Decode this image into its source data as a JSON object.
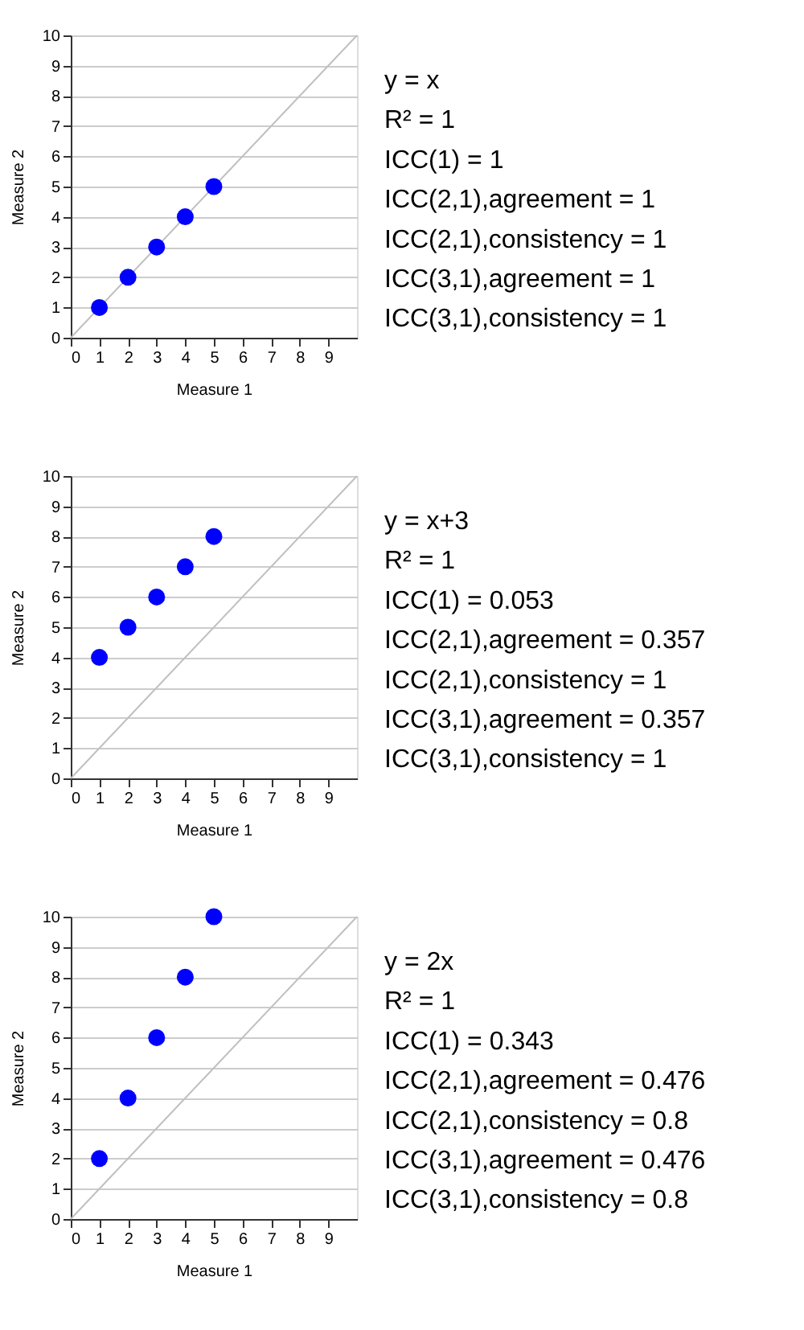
{
  "chart_data": [
    {
      "type": "scatter",
      "xlabel": "Measure 1",
      "ylabel": "Measure 2",
      "xlim": [
        0,
        10
      ],
      "xticks": [
        0,
        1,
        2,
        3,
        4,
        5,
        6,
        7,
        8,
        9
      ],
      "ylim": [
        0,
        10
      ],
      "yticks": [
        0,
        1,
        2,
        3,
        4,
        5,
        6,
        7,
        8,
        9,
        10
      ],
      "grid": "y",
      "marker": "circle",
      "series": [
        {
          "type": "line",
          "color": "#c0c0c0",
          "x": [
            0,
            10
          ],
          "values": [
            0,
            10
          ],
          "line_style": "solid",
          "marker": "none"
        },
        {
          "color": "#0000ff",
          "x": [
            1,
            2,
            3,
            4,
            5
          ],
          "values": [
            1,
            2,
            3,
            4,
            5
          ]
        }
      ],
      "annotations": [
        "y = x",
        "R² = 1",
        "ICC(1) = 1",
        "ICC(2,1),agreement = 1",
        "ICC(2,1),consistency = 1",
        "ICC(3,1),agreement = 1",
        "ICC(3,1),consistency = 1"
      ]
    },
    {
      "type": "scatter",
      "xlabel": "Measure 1",
      "ylabel": "Measure 2",
      "xlim": [
        0,
        10
      ],
      "xticks": [
        0,
        1,
        2,
        3,
        4,
        5,
        6,
        7,
        8,
        9
      ],
      "ylim": [
        0,
        10
      ],
      "yticks": [
        0,
        1,
        2,
        3,
        4,
        5,
        6,
        7,
        8,
        9,
        10
      ],
      "grid": "y",
      "marker": "circle",
      "series": [
        {
          "type": "line",
          "color": "#c0c0c0",
          "x": [
            0,
            10
          ],
          "values": [
            0,
            10
          ],
          "line_style": "solid",
          "marker": "none"
        },
        {
          "color": "#0000ff",
          "x": [
            1,
            2,
            3,
            4,
            5
          ],
          "values": [
            4,
            5,
            6,
            7,
            8
          ]
        }
      ],
      "annotations": [
        "y = x+3",
        "R² = 1",
        "ICC(1) = 0.053",
        "ICC(2,1),agreement = 0.357",
        "ICC(2,1),consistency = 1",
        "ICC(3,1),agreement = 0.357",
        "ICC(3,1),consistency = 1"
      ]
    },
    {
      "type": "scatter",
      "xlabel": "Measure 1",
      "ylabel": "Measure 2",
      "xlim": [
        0,
        10
      ],
      "xticks": [
        0,
        1,
        2,
        3,
        4,
        5,
        6,
        7,
        8,
        9
      ],
      "ylim": [
        0,
        10
      ],
      "yticks": [
        0,
        1,
        2,
        3,
        4,
        5,
        6,
        7,
        8,
        9,
        10
      ],
      "grid": "y",
      "marker": "circle",
      "series": [
        {
          "type": "line",
          "color": "#c0c0c0",
          "x": [
            0,
            10
          ],
          "values": [
            0,
            10
          ],
          "line_style": "solid",
          "marker": "none"
        },
        {
          "color": "#0000ff",
          "x": [
            1,
            2,
            3,
            4,
            5
          ],
          "values": [
            2,
            4,
            6,
            8,
            10
          ]
        }
      ],
      "annotations": [
        "y = 2x",
        "R² = 1",
        "ICC(1) = 0.343",
        "ICC(2,1),agreement = 0.476",
        "ICC(2,1),consistency = 0.8",
        "ICC(3,1),agreement = 0.476",
        "ICC(3,1),consistency = 0.8"
      ]
    }
  ]
}
